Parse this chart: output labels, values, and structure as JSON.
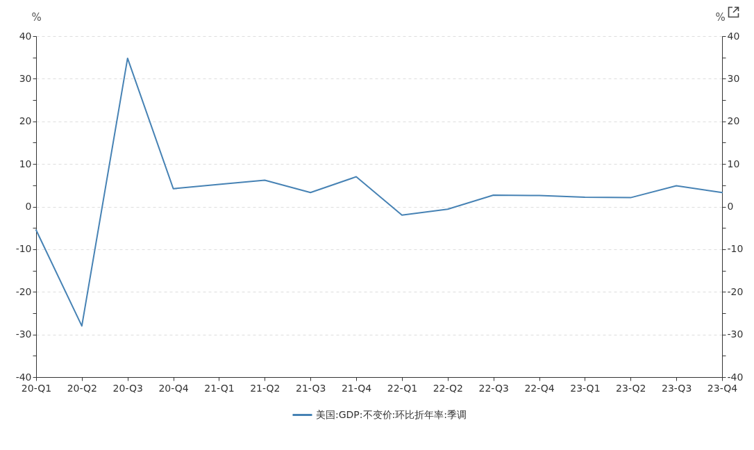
{
  "chart_data": {
    "type": "line",
    "categories": [
      "20-Q1",
      "20-Q2",
      "20-Q3",
      "20-Q4",
      "21-Q1",
      "21-Q2",
      "21-Q3",
      "21-Q4",
      "22-Q1",
      "22-Q2",
      "22-Q3",
      "22-Q4",
      "23-Q1",
      "23-Q2",
      "23-Q3",
      "23-Q4"
    ],
    "series": [
      {
        "name": "美国:GDP:不变价:环比折年率:季调",
        "color": "#4682b4",
        "values": [
          -5.5,
          -28.0,
          34.8,
          4.2,
          5.2,
          6.2,
          3.3,
          7.0,
          -2.0,
          -0.6,
          2.7,
          2.6,
          2.2,
          2.1,
          4.9,
          3.3
        ]
      }
    ],
    "ylabel": "%",
    "y2label": "%",
    "ylim": [
      -40,
      40
    ],
    "yticks": [
      -40,
      {
        "value": -35,
        "label": null
      },
      -30,
      {
        "value": -25,
        "label": null
      },
      -20,
      {
        "value": -15,
        "label": null
      },
      -10,
      {
        "value": -5,
        "label": null
      },
      0,
      {
        "value": 5,
        "label": null
      },
      10,
      {
        "value": 15,
        "label": null
      },
      20,
      {
        "value": 25,
        "label": null
      },
      30,
      {
        "value": 35,
        "label": null
      },
      40
    ],
    "y2lim": [
      -40,
      40
    ],
    "y2ticks": [
      -40,
      {
        "value": -35,
        "label": null
      },
      -30,
      {
        "value": -25,
        "label": null
      },
      -20,
      {
        "value": -15,
        "label": null
      },
      -10,
      {
        "value": -5,
        "label": null
      },
      0,
      {
        "value": 5,
        "label": null
      },
      10,
      {
        "value": 15,
        "label": null
      },
      20,
      {
        "value": 25,
        "label": null
      },
      30,
      {
        "value": 35,
        "label": null
      },
      40
    ],
    "grid": "y",
    "legend": "bottom"
  }
}
